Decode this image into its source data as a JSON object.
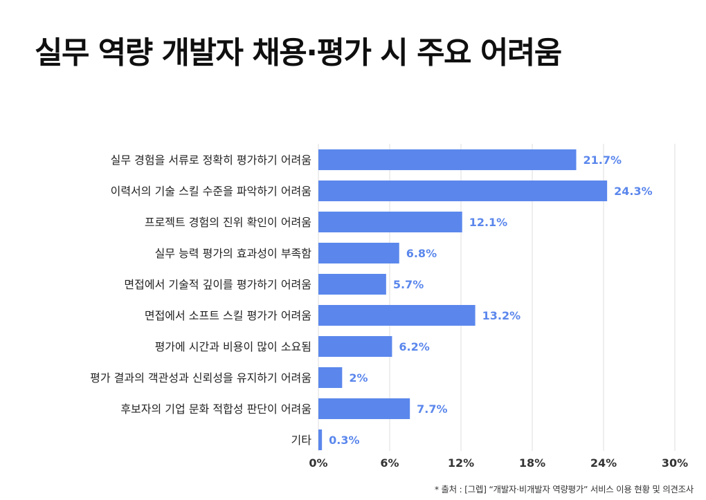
{
  "title": "실무 역량 개발자 채용·평가 시 주요 어려움",
  "source": "* 출처 : [그렙] “개발자·비개발자 역량평가” 서비스 이용 현황 및 의견조사",
  "colors": {
    "bar": "#5b87ec",
    "value_label": "#5b87ec",
    "grid": "#dcdcdc",
    "text": "#222222"
  },
  "chart_data": {
    "type": "bar",
    "orientation": "horizontal",
    "title": "실무 역량 개발자 채용·평가 시 주요 어려움",
    "xlabel": "",
    "ylabel": "",
    "categories": [
      "실무 경험을 서류로 정확히 평가하기 어려움",
      "이력서의 기술 스킬 수준을 파악하기 어려움",
      "프로젝트 경험의 진위 확인이 어려움",
      "실무 능력 평가의 효과성이 부족함",
      "면접에서 기술적 깊이를 평가하기 어려움",
      "면접에서 소프트 스킬 평가가 어려움",
      "평가에 시간과 비용이 많이 소요됨",
      "평가 결과의 객관성과 신뢰성을 유지하기 어려움",
      "후보자의 기업 문화 적합성 판단이 어려움",
      "기타"
    ],
    "values": [
      21.7,
      24.3,
      12.1,
      6.8,
      5.7,
      13.2,
      6.2,
      2,
      7.7,
      0.3
    ],
    "value_labels": [
      "21.7%",
      "24.3%",
      "12.1%",
      "6.8%",
      "5.7%",
      "13.2%",
      "6.2%",
      "2%",
      "7.7%",
      "0.3%"
    ],
    "xlim": [
      0,
      30
    ],
    "xticks": [
      0,
      6,
      12,
      18,
      24,
      30
    ],
    "xtick_labels": [
      "0%",
      "6%",
      "12%",
      "18%",
      "24%",
      "30%"
    ],
    "grid": true,
    "legend": "none"
  }
}
